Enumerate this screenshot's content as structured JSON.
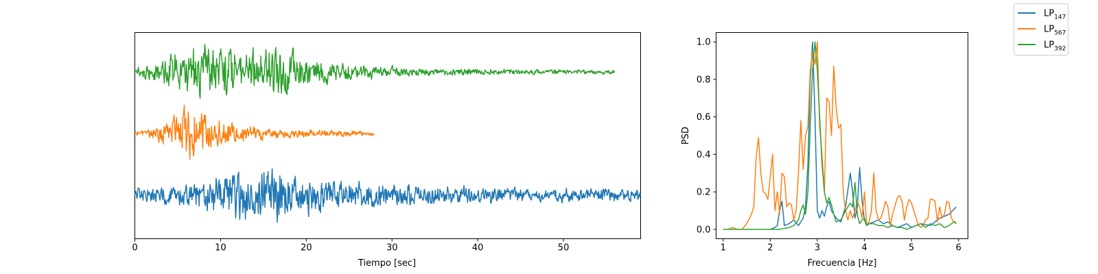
{
  "chart_data": [
    {
      "type": "line",
      "title": "",
      "xlabel": "Tiempo [sec]",
      "ylabel": "",
      "xlim": [
        0,
        59
      ],
      "xticks": [
        0,
        10,
        20,
        30,
        40,
        50
      ],
      "yticks_visible": false,
      "grid": false,
      "series": [
        {
          "name": "LP147",
          "color": "#1f77b4",
          "duration": 59,
          "offset": 0,
          "envelope": [
            [
              0,
              0.25
            ],
            [
              5,
              0.25
            ],
            [
              8,
              0.5
            ],
            [
              11,
              0.7
            ],
            [
              14,
              0.8
            ],
            [
              17,
              0.85
            ],
            [
              19,
              0.55
            ],
            [
              22,
              0.45
            ],
            [
              27,
              0.35
            ],
            [
              32,
              0.3
            ],
            [
              40,
              0.25
            ],
            [
              45,
              0.2
            ],
            [
              59,
              0.18
            ]
          ]
        },
        {
          "name": "LP567",
          "color": "#ff7f0e",
          "duration": 28,
          "offset": 1,
          "envelope": [
            [
              0,
              0.05
            ],
            [
              2,
              0.15
            ],
            [
              4,
              0.4
            ],
            [
              6,
              0.75
            ],
            [
              7,
              0.8
            ],
            [
              9,
              0.45
            ],
            [
              12,
              0.25
            ],
            [
              16,
              0.15
            ],
            [
              22,
              0.1
            ],
            [
              28,
              0.06
            ]
          ]
        },
        {
          "name": "LP392",
          "color": "#2ca02c",
          "duration": 56,
          "offset": 2,
          "envelope": [
            [
              0,
              0.1
            ],
            [
              2,
              0.25
            ],
            [
              5,
              0.55
            ],
            [
              7,
              0.8
            ],
            [
              10,
              0.7
            ],
            [
              13,
              0.65
            ],
            [
              15,
              0.7
            ],
            [
              17,
              0.8
            ],
            [
              19,
              0.45
            ],
            [
              23,
              0.3
            ],
            [
              27,
              0.2
            ],
            [
              32,
              0.12
            ],
            [
              40,
              0.08
            ],
            [
              56,
              0.06
            ]
          ]
        }
      ]
    },
    {
      "type": "line",
      "title": "",
      "xlabel": "Frecuencia [Hz]",
      "ylabel": "PSD",
      "xlim": [
        0.85,
        6.2
      ],
      "ylim": [
        -0.05,
        1.05
      ],
      "xticks": [
        1,
        2,
        3,
        4,
        5,
        6
      ],
      "yticks": [
        "0.0",
        "0.2",
        "0.4",
        "0.6",
        "0.8",
        "1.0"
      ],
      "grid": false,
      "series": [
        {
          "name": "LP147",
          "color": "#1f77b4",
          "x": [
            1.0,
            1.2,
            1.4,
            1.6,
            1.8,
            2.0,
            2.1,
            2.15,
            2.2,
            2.25,
            2.3,
            2.4,
            2.5,
            2.6,
            2.7,
            2.75,
            2.8,
            2.85,
            2.9,
            2.95,
            3.0,
            3.05,
            3.1,
            3.15,
            3.2,
            3.25,
            3.3,
            3.4,
            3.5,
            3.6,
            3.7,
            3.75,
            3.8,
            3.85,
            3.9,
            3.95,
            4.0,
            4.05,
            4.1,
            4.2,
            4.3,
            4.4,
            4.5,
            4.6,
            4.7,
            4.8,
            4.9,
            5.0,
            5.2,
            5.4,
            5.6,
            5.8,
            5.95
          ],
          "y": [
            0.0,
            0.0,
            0.0,
            0.0,
            0.0,
            0.0,
            0.01,
            0.02,
            0.1,
            0.15,
            0.02,
            0.03,
            0.05,
            0.02,
            0.06,
            0.12,
            0.35,
            0.8,
            1.0,
            0.6,
            0.1,
            0.06,
            0.1,
            0.07,
            0.12,
            0.15,
            0.1,
            0.06,
            0.04,
            0.12,
            0.3,
            0.2,
            0.06,
            0.12,
            0.33,
            0.15,
            0.05,
            0.02,
            0.03,
            0.04,
            0.05,
            0.03,
            0.04,
            0.02,
            0.01,
            0.02,
            0.03,
            0.01,
            0.03,
            0.02,
            0.06,
            0.08,
            0.12
          ]
        },
        {
          "name": "LP567",
          "color": "#ff7f0e",
          "x": [
            1.0,
            1.1,
            1.2,
            1.3,
            1.4,
            1.5,
            1.6,
            1.65,
            1.7,
            1.75,
            1.8,
            1.85,
            1.9,
            1.95,
            2.0,
            2.05,
            2.1,
            2.15,
            2.2,
            2.25,
            2.3,
            2.35,
            2.4,
            2.45,
            2.5,
            2.55,
            2.6,
            2.65,
            2.7,
            2.75,
            2.8,
            2.85,
            2.9,
            2.95,
            3.0,
            3.05,
            3.1,
            3.15,
            3.2,
            3.25,
            3.3,
            3.35,
            3.4,
            3.45,
            3.5,
            3.55,
            3.6,
            3.65,
            3.7,
            3.75,
            3.8,
            3.85,
            3.9,
            3.95,
            4.0,
            4.05,
            4.1,
            4.15,
            4.2,
            4.25,
            4.3,
            4.35,
            4.4,
            4.45,
            4.5,
            4.55,
            4.6,
            4.7,
            4.75,
            4.8,
            4.85,
            4.9,
            4.95,
            5.0,
            5.05,
            5.1,
            5.15,
            5.2,
            5.25,
            5.3,
            5.35,
            5.4,
            5.45,
            5.5,
            5.55,
            5.6,
            5.65,
            5.7,
            5.75,
            5.8,
            5.85,
            5.9,
            5.95
          ],
          "y": [
            0.0,
            0.0,
            0.01,
            0.0,
            0.0,
            0.03,
            0.08,
            0.12,
            0.38,
            0.49,
            0.3,
            0.2,
            0.19,
            0.16,
            0.28,
            0.4,
            0.1,
            0.2,
            0.08,
            0.3,
            0.28,
            0.12,
            0.14,
            0.13,
            0.05,
            0.1,
            0.3,
            0.58,
            0.32,
            0.5,
            0.55,
            0.85,
            0.95,
            0.88,
            1.0,
            0.55,
            0.4,
            0.2,
            0.7,
            0.68,
            0.5,
            0.87,
            0.65,
            0.54,
            0.56,
            0.2,
            0.1,
            0.05,
            0.1,
            0.06,
            0.1,
            0.15,
            0.12,
            0.06,
            0.2,
            0.02,
            0.04,
            0.1,
            0.3,
            0.1,
            0.05,
            0.06,
            0.1,
            0.15,
            0.12,
            0.02,
            0.08,
            0.17,
            0.18,
            0.15,
            0.05,
            0.12,
            0.16,
            0.14,
            0.1,
            0.06,
            0.02,
            0.01,
            0.02,
            0.05,
            0.06,
            0.16,
            0.16,
            0.15,
            0.04,
            0.12,
            0.06,
            0.08,
            0.15,
            0.14,
            0.06,
            0.04,
            0.04
          ]
        },
        {
          "name": "LP392",
          "color": "#2ca02c",
          "x": [
            1.0,
            1.2,
            1.4,
            1.6,
            1.8,
            2.0,
            2.2,
            2.4,
            2.5,
            2.6,
            2.65,
            2.7,
            2.75,
            2.8,
            2.85,
            2.9,
            2.95,
            3.0,
            3.05,
            3.1,
            3.15,
            3.2,
            3.25,
            3.3,
            3.35,
            3.4,
            3.5,
            3.6,
            3.7,
            3.75,
            3.8,
            3.85,
            3.9,
            3.95,
            4.0,
            4.05,
            4.1,
            4.2,
            4.3,
            4.4,
            4.5,
            4.6,
            4.7,
            4.8,
            4.9,
            5.0,
            5.1,
            5.2,
            5.3,
            5.4,
            5.5,
            5.6,
            5.7,
            5.8,
            5.9,
            5.95
          ],
          "y": [
            0.0,
            0.0,
            0.0,
            0.0,
            0.0,
            0.0,
            0.0,
            0.01,
            0.02,
            0.05,
            0.1,
            0.13,
            0.08,
            0.2,
            0.55,
            0.85,
            1.0,
            0.85,
            0.6,
            0.35,
            0.2,
            0.14,
            0.17,
            0.13,
            0.08,
            0.04,
            0.05,
            0.1,
            0.14,
            0.12,
            0.25,
            0.08,
            0.03,
            0.05,
            0.06,
            0.02,
            0.03,
            0.03,
            0.02,
            0.02,
            0.01,
            0.02,
            0.01,
            0.01,
            0.0,
            0.01,
            0.02,
            0.03,
            0.01,
            0.03,
            0.02,
            0.03,
            0.01,
            0.02,
            0.04,
            0.03
          ]
        }
      ]
    }
  ],
  "legend": {
    "placement": "top-right",
    "items": [
      {
        "base": "LP",
        "sub": "147",
        "color": "#1f77b4"
      },
      {
        "base": "LP",
        "sub": "567",
        "color": "#ff7f0e"
      },
      {
        "base": "LP",
        "sub": "392",
        "color": "#2ca02c"
      }
    ]
  }
}
